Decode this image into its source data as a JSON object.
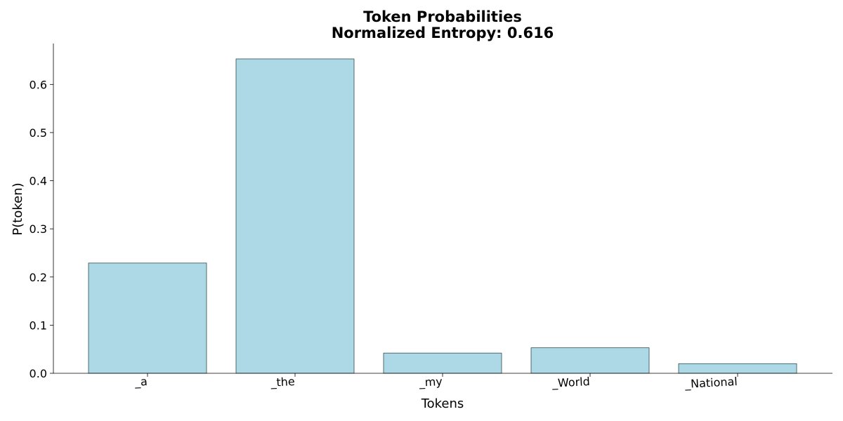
{
  "chart_data": {
    "type": "bar",
    "title": "Token Probabilities",
    "subtitle": "Normalized Entropy: 0.616",
    "xlabel": "Tokens",
    "ylabel": "P(token)",
    "categories": [
      "_a",
      "_the",
      "_my",
      "_World",
      "_National"
    ],
    "values": [
      0.229,
      0.653,
      0.042,
      0.053,
      0.02
    ],
    "ylim": [
      0,
      0.685
    ],
    "yticks": [
      0.0,
      0.1,
      0.2,
      0.3,
      0.4,
      0.5,
      0.6
    ],
    "ytick_labels": [
      "0.0",
      "0.1",
      "0.2",
      "0.3",
      "0.4",
      "0.5",
      "0.6"
    ],
    "grid": false,
    "legend": "none",
    "colors": {
      "bar_fill": "#add8e6",
      "bar_edge": "#2f4f4f",
      "axis": "#000000"
    }
  }
}
